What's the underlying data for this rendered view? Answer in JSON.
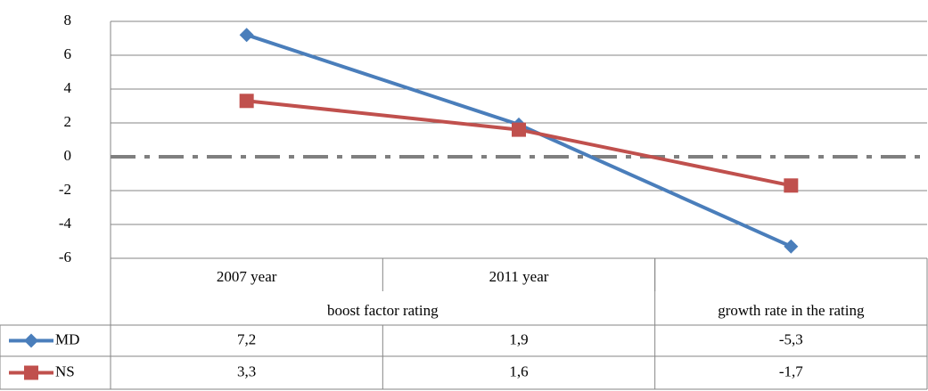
{
  "chart_data": {
    "type": "line",
    "categories": [
      "2007 year",
      "2011 year",
      null
    ],
    "category_groups": [
      "boost factor rating",
      "boost factor rating",
      "growth rate in the rating"
    ],
    "series": [
      {
        "name": "MD",
        "color": "#4a7ebb",
        "marker": "diamond",
        "values": [
          7.2,
          1.9,
          -5.3
        ],
        "value_labels": [
          "7,2",
          "1,9",
          "-5,3"
        ]
      },
      {
        "name": "NS",
        "color": "#c0504d",
        "marker": "square",
        "values": [
          3.3,
          1.6,
          -1.7
        ],
        "value_labels": [
          "3,3",
          "1,6",
          "-1,7"
        ]
      }
    ],
    "ylim": [
      -6,
      8
    ],
    "yticks": [
      -6,
      -4,
      -2,
      0,
      2,
      4,
      6,
      8
    ],
    "grid": true,
    "data_table": true
  }
}
